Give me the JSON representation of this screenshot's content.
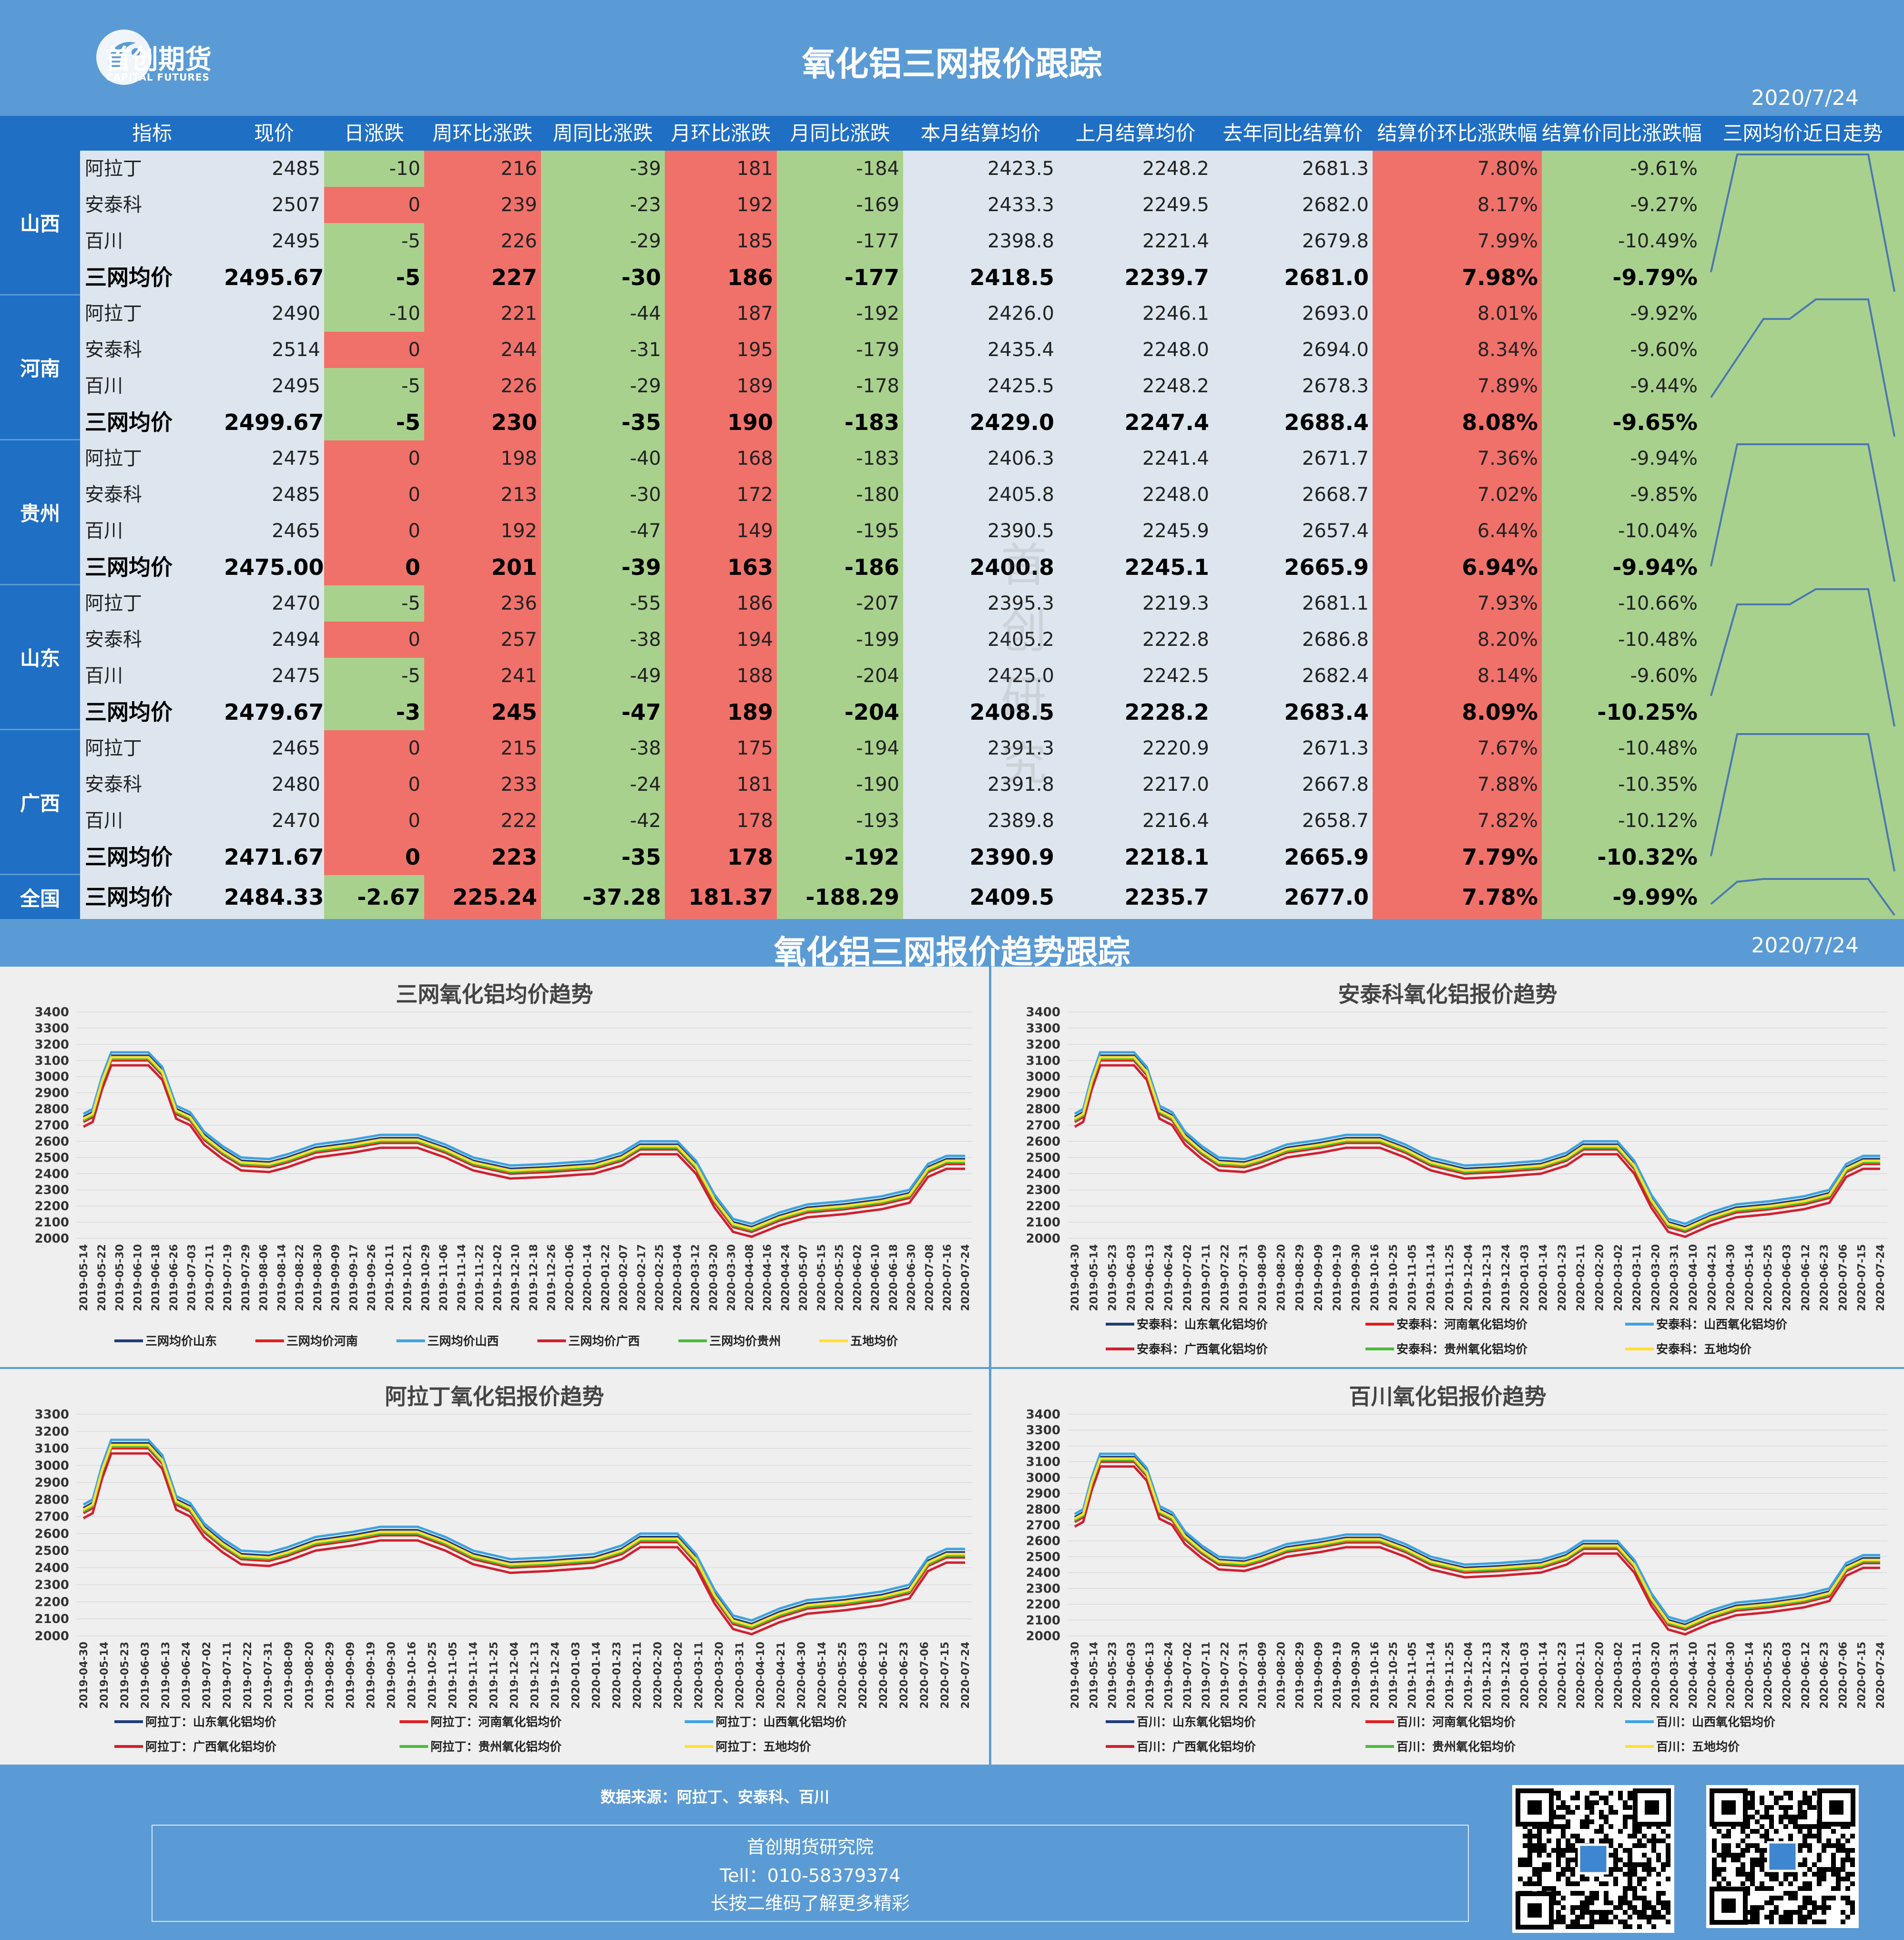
{
  "header": {
    "logo_cn": "首创期货",
    "logo_en": "CAPITAL FUTURES",
    "title": "氧化铝三网报价跟踪",
    "date": "2020/7/24"
  },
  "table": {
    "headers": [
      "指标",
      "现价",
      "日涨跌",
      "周环比涨跌",
      "周同比涨跌",
      "月环比涨跌",
      "月同比涨跌",
      "本月结算均价",
      "上月结算均价",
      "去年同比结算价",
      "结算价环比涨跌幅",
      "结算价同比涨跌幅",
      "三网均价近日走势"
    ],
    "provinces": [
      {
        "name": "山西",
        "rows": [
          [
            "阿拉丁",
            "2485",
            "-10",
            "216",
            "-39",
            "181",
            "-184",
            "2423.5",
            "2248.2",
            "2681.3",
            "7.80%",
            "-9.61%"
          ],
          [
            "安泰科",
            "2507",
            "0",
            "239",
            "-23",
            "192",
            "-169",
            "2433.3",
            "2249.5",
            "2682.0",
            "8.17%",
            "-9.27%"
          ],
          [
            "百川",
            "2495",
            "-5",
            "226",
            "-29",
            "185",
            "-177",
            "2398.8",
            "2221.4",
            "2679.8",
            "7.99%",
            "-10.49%"
          ],
          [
            "三网均价",
            "2495.67",
            "-5",
            "227",
            "-30",
            "186",
            "-177",
            "2418.5",
            "2239.7",
            "2681.0",
            "7.98%",
            "-9.79%"
          ]
        ]
      },
      {
        "name": "河南",
        "rows": [
          [
            "阿拉丁",
            "2490",
            "-10",
            "221",
            "-44",
            "187",
            "-192",
            "2426.0",
            "2246.1",
            "2693.0",
            "8.01%",
            "-9.92%"
          ],
          [
            "安泰科",
            "2514",
            "0",
            "244",
            "-31",
            "195",
            "-179",
            "2435.4",
            "2248.0",
            "2694.0",
            "8.34%",
            "-9.60%"
          ],
          [
            "百川",
            "2495",
            "-5",
            "226",
            "-29",
            "189",
            "-178",
            "2425.5",
            "2248.2",
            "2678.3",
            "7.89%",
            "-9.44%"
          ],
          [
            "三网均价",
            "2499.67",
            "-5",
            "230",
            "-35",
            "190",
            "-183",
            "2429.0",
            "2247.4",
            "2688.4",
            "8.08%",
            "-9.65%"
          ]
        ]
      },
      {
        "name": "贵州",
        "rows": [
          [
            "阿拉丁",
            "2475",
            "0",
            "198",
            "-40",
            "168",
            "-183",
            "2406.3",
            "2241.4",
            "2671.7",
            "7.36%",
            "-9.94%"
          ],
          [
            "安泰科",
            "2485",
            "0",
            "213",
            "-30",
            "172",
            "-180",
            "2405.8",
            "2248.0",
            "2668.7",
            "7.02%",
            "-9.85%"
          ],
          [
            "百川",
            "2465",
            "0",
            "192",
            "-47",
            "149",
            "-195",
            "2390.5",
            "2245.9",
            "2657.4",
            "6.44%",
            "-10.04%"
          ],
          [
            "三网均价",
            "2475.00",
            "0",
            "201",
            "-39",
            "163",
            "-186",
            "2400.8",
            "2245.1",
            "2665.9",
            "6.94%",
            "-9.94%"
          ]
        ]
      },
      {
        "name": "山东",
        "rows": [
          [
            "阿拉丁",
            "2470",
            "-5",
            "236",
            "-55",
            "186",
            "-207",
            "2395.3",
            "2219.3",
            "2681.1",
            "7.93%",
            "-10.66%"
          ],
          [
            "安泰科",
            "2494",
            "0",
            "257",
            "-38",
            "194",
            "-199",
            "2405.2",
            "2222.8",
            "2686.8",
            "8.20%",
            "-10.48%"
          ],
          [
            "百川",
            "2475",
            "-5",
            "241",
            "-49",
            "188",
            "-204",
            "2425.0",
            "2242.5",
            "2682.4",
            "8.14%",
            "-9.60%"
          ],
          [
            "三网均价",
            "2479.67",
            "-3",
            "245",
            "-47",
            "189",
            "-204",
            "2408.5",
            "2228.2",
            "2683.4",
            "8.09%",
            "-10.25%"
          ]
        ]
      },
      {
        "name": "广西",
        "rows": [
          [
            "阿拉丁",
            "2465",
            "0",
            "215",
            "-38",
            "175",
            "-194",
            "2391.3",
            "2220.9",
            "2671.3",
            "7.67%",
            "-10.48%"
          ],
          [
            "安泰科",
            "2480",
            "0",
            "233",
            "-24",
            "181",
            "-190",
            "2391.8",
            "2217.0",
            "2667.8",
            "7.88%",
            "-10.35%"
          ],
          [
            "百川",
            "2470",
            "0",
            "222",
            "-42",
            "178",
            "-193",
            "2389.8",
            "2216.4",
            "2658.7",
            "7.82%",
            "-10.12%"
          ],
          [
            "三网均价",
            "2471.67",
            "0",
            "223",
            "-35",
            "178",
            "-192",
            "2390.9",
            "2218.1",
            "2665.9",
            "7.79%",
            "-10.32%"
          ]
        ]
      }
    ],
    "national": {
      "name": "全国",
      "row": [
        "三网均价",
        "2484.33",
        "-2.67",
        "225.24",
        "-37.28",
        "181.37",
        "-188.29",
        "2409.5",
        "2235.7",
        "2677.0",
        "7.78%",
        "-9.99%"
      ]
    },
    "sparklines": [
      [
        2430,
        2490,
        2490,
        2490,
        2490,
        2490,
        2490,
        2420
      ],
      [
        2420,
        2440,
        2460,
        2460,
        2470,
        2470,
        2470,
        2400
      ],
      [
        2400,
        2480,
        2480,
        2480,
        2480,
        2480,
        2480,
        2390
      ],
      [
        2410,
        2470,
        2470,
        2470,
        2480,
        2480,
        2480,
        2390
      ],
      [
        2400,
        2480,
        2480,
        2480,
        2480,
        2480,
        2480,
        2390
      ],
      [
        2430,
        2470,
        2475,
        2475,
        2475,
        2475,
        2475,
        2410
      ]
    ],
    "colors": {
      "red": "#f0716a",
      "green": "#a9d18e",
      "gray": "#dde6ee",
      "spark": "#4a78b0"
    }
  },
  "watermark": "首创研究",
  "section2": {
    "title": "氧化铝三网报价趋势跟踪",
    "date": "2020/7/24"
  },
  "charts": [
    {
      "title": "三网氧化铝均价趋势",
      "dates": [
        "2019-05-14",
        "2019-05-22",
        "2019-05-30",
        "2019-06-10",
        "2019-06-18",
        "2019-06-26",
        "2019-07-03",
        "2019-07-11",
        "2019-07-19",
        "2019-07-29",
        "2019-08-06",
        "2019-08-14",
        "2019-08-22",
        "2019-08-30",
        "2019-09-09",
        "2019-09-17",
        "2019-09-26",
        "2019-10-11",
        "2019-10-21",
        "2019-10-29",
        "2019-11-06",
        "2019-11-14",
        "2019-11-22",
        "2019-12-02",
        "2019-12-10",
        "2019-12-18",
        "2019-12-26",
        "2020-01-06",
        "2020-01-14",
        "2020-01-22",
        "2020-02-07",
        "2020-02-17",
        "2020-02-25",
        "2020-03-04",
        "2020-03-12",
        "2020-03-20",
        "2020-03-30",
        "2020-04-08",
        "2020-04-16",
        "2020-04-24",
        "2020-05-07",
        "2020-05-15",
        "2020-05-25",
        "2020-06-02",
        "2020-06-10",
        "2020-06-18",
        "2020-06-30",
        "2020-07-08",
        "2020-07-16",
        "2020-07-24"
      ],
      "legend": [
        "三网均价山东",
        "三网均价河南",
        "三网均价山西",
        "三网均价广西",
        "三网均价贵州",
        "五地均价"
      ],
      "ylim": [
        2000,
        3400
      ]
    },
    {
      "title": "安泰科氧化铝报价趋势",
      "dates": [
        "2019-04-30",
        "2019-05-14",
        "2019-05-23",
        "2019-06-03",
        "2019-06-13",
        "2019-06-24",
        "2019-07-02",
        "2019-07-11",
        "2019-07-22",
        "2019-07-31",
        "2019-08-09",
        "2019-08-20",
        "2019-08-29",
        "2019-09-09",
        "2019-09-19",
        "2019-09-30",
        "2019-10-16",
        "2019-10-25",
        "2019-11-05",
        "2019-11-14",
        "2019-11-25",
        "2019-12-04",
        "2019-12-13",
        "2019-12-24",
        "2020-01-03",
        "2020-01-14",
        "2020-01-23",
        "2020-02-11",
        "2020-02-20",
        "2020-03-02",
        "2020-03-11",
        "2020-03-20",
        "2020-03-31",
        "2020-04-10",
        "2020-04-21",
        "2020-04-30",
        "2020-05-14",
        "2020-05-25",
        "2020-06-03",
        "2020-06-12",
        "2020-06-23",
        "2020-07-06",
        "2020-07-15",
        "2020-07-24"
      ],
      "legend": [
        "安泰科：山东氧化铝均价",
        "安泰科：河南氧化铝均价",
        "安泰科：山西氧化铝均价",
        "安泰科：广西氧化铝均价",
        "安泰科：贵州氧化铝均价",
        "安泰科：五地均价"
      ],
      "ylim": [
        2000,
        3400
      ]
    },
    {
      "title": "阿拉丁氧化铝报价趋势",
      "dates": [
        "2019-04-30",
        "2019-05-14",
        "2019-05-23",
        "2019-06-03",
        "2019-06-13",
        "2019-06-24",
        "2019-07-02",
        "2019-07-11",
        "2019-07-22",
        "2019-07-31",
        "2019-08-09",
        "2019-08-20",
        "2019-08-29",
        "2019-09-09",
        "2019-09-19",
        "2019-09-30",
        "2019-10-16",
        "2019-10-25",
        "2019-11-05",
        "2019-11-14",
        "2019-11-25",
        "2019-12-04",
        "2019-12-13",
        "2019-12-24",
        "2020-01-03",
        "2020-01-14",
        "2020-01-23",
        "2020-02-11",
        "2020-02-20",
        "2020-03-02",
        "2020-03-11",
        "2020-03-20",
        "2020-03-31",
        "2020-04-10",
        "2020-04-21",
        "2020-04-30",
        "2020-05-14",
        "2020-05-25",
        "2020-06-03",
        "2020-06-12",
        "2020-06-23",
        "2020-07-06",
        "2020-07-15",
        "2020-07-24"
      ],
      "legend": [
        "阿拉丁：山东氧化铝均价",
        "阿拉丁：河南氧化铝均价",
        "阿拉丁：山西氧化铝均价",
        "阿拉丁：广西氧化铝均价",
        "阿拉丁：贵州氧化铝均价",
        "阿拉丁：五地均价"
      ],
      "ylim": [
        2000,
        3300
      ]
    },
    {
      "title": "百川氧化铝报价趋势",
      "dates": [
        "2019-04-30",
        "2019-05-14",
        "2019-05-23",
        "2019-06-03",
        "2019-06-13",
        "2019-06-24",
        "2019-07-02",
        "2019-07-11",
        "2019-07-22",
        "2019-07-31",
        "2019-08-09",
        "2019-08-20",
        "2019-08-29",
        "2019-09-09",
        "2019-09-19",
        "2019-09-30",
        "2019-10-16",
        "2019-10-25",
        "2019-11-05",
        "2019-11-14",
        "2019-11-25",
        "2019-12-04",
        "2019-12-13",
        "2019-12-24",
        "2020-01-03",
        "2020-01-14",
        "2020-01-23",
        "2020-02-11",
        "2020-02-20",
        "2020-03-02",
        "2020-03-11",
        "2020-03-20",
        "2020-03-31",
        "2020-04-10",
        "2020-04-21",
        "2020-04-30",
        "2020-05-14",
        "2020-05-25",
        "2020-06-03",
        "2020-06-12",
        "2020-06-23",
        "2020-07-06",
        "2020-07-15",
        "2020-07-24"
      ],
      "legend": [
        "百川：山东氧化铝均价",
        "百川：河南氧化铝均价",
        "百川：山西氧化铝均价",
        "百川：广西氧化铝均价",
        "百川：贵州氧化铝均价",
        "百川：五地均价"
      ],
      "ylim": [
        2000,
        3400
      ]
    }
  ],
  "chart_data": {
    "type": "line",
    "profile": [
      [
        0,
        2750
      ],
      [
        2,
        2780
      ],
      [
        4,
        2980
      ],
      [
        6,
        3130
      ],
      [
        14,
        3130
      ],
      [
        17,
        3040
      ],
      [
        20,
        2800
      ],
      [
        23,
        2760
      ],
      [
        26,
        2640
      ],
      [
        30,
        2550
      ],
      [
        34,
        2480
      ],
      [
        40,
        2470
      ],
      [
        44,
        2500
      ],
      [
        50,
        2560
      ],
      [
        58,
        2590
      ],
      [
        64,
        2620
      ],
      [
        72,
        2620
      ],
      [
        78,
        2560
      ],
      [
        84,
        2480
      ],
      [
        92,
        2430
      ],
      [
        100,
        2440
      ],
      [
        110,
        2460
      ],
      [
        116,
        2510
      ],
      [
        120,
        2580
      ],
      [
        128,
        2580
      ],
      [
        132,
        2460
      ],
      [
        136,
        2250
      ],
      [
        140,
        2100
      ],
      [
        144,
        2070
      ],
      [
        150,
        2140
      ],
      [
        156,
        2190
      ],
      [
        164,
        2210
      ],
      [
        172,
        2240
      ],
      [
        178,
        2280
      ],
      [
        182,
        2440
      ],
      [
        186,
        2490
      ],
      [
        190,
        2490
      ]
    ],
    "series_offsets": [
      0,
      -30,
      20,
      -60,
      -20,
      -10
    ],
    "series_colors": [
      "#1f3d7a",
      "#e01f1f",
      "#3ea3e0",
      "#d02030",
      "#4cbb3a",
      "#ffe030"
    ]
  },
  "footer": {
    "source": "数据来源：阿拉丁、安泰科、百川",
    "org": "首创期货研究院",
    "tel": "Tell：010-58379374",
    "qr_hint": "长按二维码了解更多精彩"
  }
}
